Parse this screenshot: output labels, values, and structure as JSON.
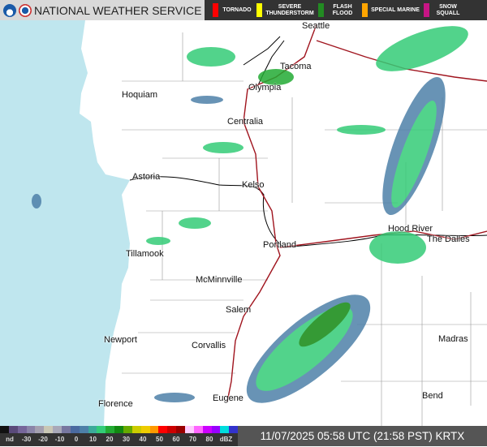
{
  "header": {
    "title": "NATIONAL WEATHER SERVICE",
    "logos": [
      "noaa-logo",
      "nws-logo"
    ]
  },
  "alerts": [
    {
      "label": "TORNADO",
      "color": "#ff0000"
    },
    {
      "label": "SEVERE THUNDERSTORM",
      "color": "#ffff00"
    },
    {
      "label": "FLASH FLOOD",
      "color": "#228b22"
    },
    {
      "label": "SPECIAL MARINE",
      "color": "#ffa500"
    },
    {
      "label": "SNOW SQUALL",
      "color": "#c71585"
    }
  ],
  "cities": [
    {
      "name": "Seattle"
    },
    {
      "name": "Tacoma"
    },
    {
      "name": "Olympia"
    },
    {
      "name": "Hoquiam"
    },
    {
      "name": "Centralia"
    },
    {
      "name": "Astoria"
    },
    {
      "name": "Kelso"
    },
    {
      "name": "Hood River"
    },
    {
      "name": "The Dalles"
    },
    {
      "name": "Portland"
    },
    {
      "name": "Tillamook"
    },
    {
      "name": "McMinnville"
    },
    {
      "name": "Salem"
    },
    {
      "name": "Newport"
    },
    {
      "name": "Corvallis"
    },
    {
      "name": "Madras"
    },
    {
      "name": "Florence"
    },
    {
      "name": "Eugene"
    },
    {
      "name": "Bend"
    }
  ],
  "legend": {
    "labels": [
      "nd",
      "-30",
      "-20",
      "-10",
      "0",
      "10",
      "20",
      "30",
      "40",
      "50",
      "60",
      "70",
      "80",
      "dBZ"
    ],
    "colors": [
      "#111111",
      "#5a4a7a",
      "#76669a",
      "#8a84a8",
      "#a4a0b0",
      "#c9c7b5",
      "#a8a8b8",
      "#7777a0",
      "#4a6aa0",
      "#4d80a8",
      "#3caa9a",
      "#33cc77",
      "#22aa33",
      "#118811",
      "#66aa00",
      "#cccc00",
      "#eecc00",
      "#ff9900",
      "#ff0000",
      "#cc0000",
      "#990000",
      "#ffccff",
      "#ff66ff",
      "#cc00ff",
      "#9900ff",
      "#00dddd",
      "#3333cc"
    ]
  },
  "timestamp": "11/07/2025 05:58 UTC (21:58 PST)  KRTX"
}
